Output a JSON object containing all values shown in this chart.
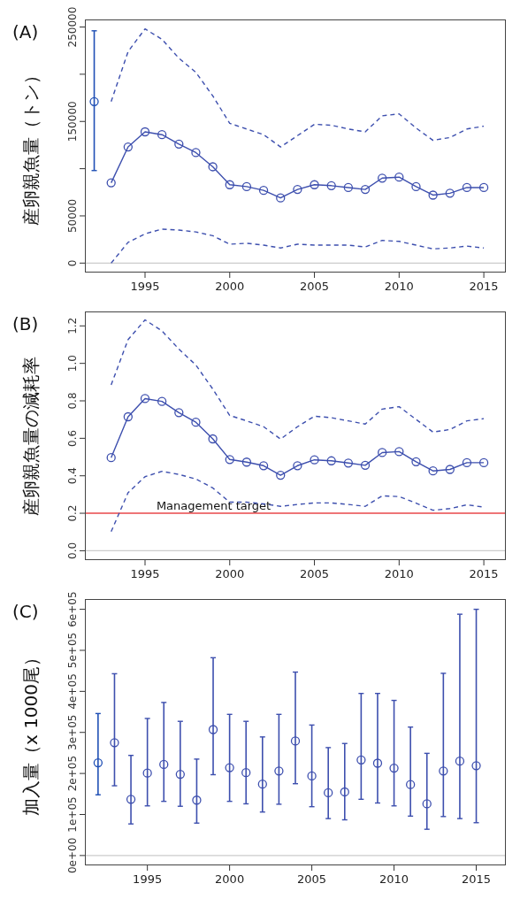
{
  "chart_data": [
    {
      "type": "line",
      "title": "(A)",
      "ylabel": "産卵親魚量（トン）",
      "x": [
        1993,
        1994,
        1995,
        1996,
        1997,
        1998,
        1999,
        2000,
        2001,
        2002,
        2003,
        2004,
        2005,
        2006,
        2007,
        2008,
        2009,
        2010,
        2011,
        2012,
        2013,
        2014,
        2015
      ],
      "xlim": [
        1991.45,
        2016.3
      ],
      "xticks": [
        1995,
        2000,
        2005,
        2010,
        2015
      ],
      "ylim": [
        -10000,
        258000
      ],
      "yticks": [
        0,
        50000,
        {
          "value": 100000,
          "label": null
        },
        150000,
        {
          "value": 200000,
          "label": null
        },
        250000
      ],
      "marker": "circle",
      "line_style": "solid",
      "series": [
        {
          "color": "#3d4fae",
          "values": [
            85000,
            123000,
            139000,
            136000,
            126000,
            117000,
            102000,
            83000,
            81000,
            77000,
            69000,
            78000,
            83000,
            82000,
            80000,
            78000,
            90000,
            91000,
            81000,
            72000,
            74000,
            80000,
            80000
          ]
        },
        {
          "color": "#3d4fae",
          "line_style": "dashed",
          "marker": "none",
          "values": [
            171000,
            224000,
            248000,
            237000,
            217000,
            202000,
            177000,
            148000,
            142000,
            136000,
            123000,
            135000,
            147000,
            146000,
            142000,
            139000,
            156000,
            158000,
            143000,
            130000,
            133000,
            142000,
            145000
          ]
        },
        {
          "color": "#3d4fae",
          "line_style": "dashed",
          "marker": "none",
          "values": [
            0,
            22000,
            31000,
            36000,
            35000,
            33000,
            29000,
            20000,
            21000,
            19000,
            16000,
            20000,
            19000,
            19000,
            19000,
            17000,
            24000,
            23000,
            19000,
            15000,
            16000,
            18000,
            16000
          ]
        },
        {
          "type": "scatter",
          "color": "#1f4fb5",
          "x": [
            1992
          ],
          "values": [
            171000
          ],
          "errors": [
            [
              98000,
              246000
            ]
          ]
        }
      ],
      "ref_lines": [
        {
          "axis": "y",
          "value": 0,
          "color": "#cccccc"
        }
      ]
    },
    {
      "type": "line",
      "title": "(B)",
      "ylabel": "産卵親魚量の減耗率",
      "x": [
        1993,
        1994,
        1995,
        1996,
        1997,
        1998,
        1999,
        2000,
        2001,
        2002,
        2003,
        2004,
        2005,
        2006,
        2007,
        2008,
        2009,
        2010,
        2011,
        2012,
        2013,
        2014,
        2015
      ],
      "xlim": [
        1991.45,
        2016.3
      ],
      "xticks": [
        1995,
        2000,
        2005,
        2010,
        2015
      ],
      "ylim": [
        -0.05,
        1.277
      ],
      "yticks": [
        {
          "value": 0,
          "label": "0.0"
        },
        0.2,
        0.4,
        0.6,
        0.8,
        {
          "value": 1,
          "label": "1.0"
        },
        1.2
      ],
      "marker": "circle",
      "line_style": "solid",
      "series": [
        {
          "color": "#3d4fae",
          "values": [
            0.497,
            0.715,
            0.812,
            0.797,
            0.737,
            0.686,
            0.597,
            0.487,
            0.473,
            0.454,
            0.403,
            0.454,
            0.485,
            0.48,
            0.468,
            0.456,
            0.524,
            0.529,
            0.475,
            0.426,
            0.434,
            0.47,
            0.47
          ]
        },
        {
          "color": "#3d4fae",
          "line_style": "dashed",
          "marker": "none",
          "values": [
            0.885,
            1.127,
            1.232,
            1.173,
            1.076,
            0.991,
            0.863,
            0.722,
            0.693,
            0.662,
            0.596,
            0.662,
            0.718,
            0.71,
            0.693,
            0.676,
            0.756,
            0.769,
            0.701,
            0.633,
            0.647,
            0.693,
            0.705
          ]
        },
        {
          "color": "#3d4fae",
          "line_style": "dashed",
          "marker": "none",
          "values": [
            0.102,
            0.31,
            0.395,
            0.424,
            0.407,
            0.383,
            0.335,
            0.259,
            0.259,
            0.25,
            0.237,
            0.247,
            0.255,
            0.255,
            0.247,
            0.237,
            0.293,
            0.289,
            0.254,
            0.216,
            0.225,
            0.245,
            0.233
          ]
        }
      ],
      "ref_lines": [
        {
          "axis": "y",
          "value": 0,
          "color": "#cccccc"
        },
        {
          "axis": "y",
          "value": 0.2,
          "label": "Management target",
          "color": "#e8474a"
        }
      ]
    },
    {
      "type": "scatter",
      "title": "(C)",
      "ylabel": "加入量（x 1000尾）",
      "xlim": [
        1991.2,
        2016.8
      ],
      "xticks": [
        1995,
        2000,
        2005,
        2010,
        2015
      ],
      "ylim": [
        -24000,
        625000
      ],
      "yticks": [
        {
          "value": 0,
          "label": "0e+00"
        },
        {
          "value": 100000,
          "label": "1e+05"
        },
        {
          "value": 200000,
          "label": "2e+05"
        },
        {
          "value": 300000,
          "label": "3e+05"
        },
        {
          "value": 400000,
          "label": "4e+05"
        },
        {
          "value": 500000,
          "label": "5e+05"
        },
        {
          "value": 600000,
          "label": "6e+05"
        }
      ],
      "marker": "circle",
      "series": [
        {
          "color": "#1f4fb5",
          "x": [
            1992
          ],
          "values": [
            226000
          ],
          "errors": [
            [
              148000,
              346000
            ]
          ]
        },
        {
          "color": "#3d4fae",
          "x": [
            1993,
            1994,
            1995,
            1996,
            1997,
            1998,
            1999,
            2000,
            2001,
            2002,
            2003,
            2004,
            2005,
            2006,
            2007,
            2008,
            2009,
            2010,
            2011,
            2012,
            2013,
            2014,
            2015
          ],
          "values": [
            275000,
            137000,
            201000,
            222000,
            198000,
            135000,
            307000,
            214000,
            202000,
            174000,
            206000,
            279000,
            194000,
            153000,
            155000,
            233000,
            225000,
            213000,
            173000,
            126000,
            206000,
            230000,
            219000
          ],
          "errors": [
            [
              170000,
              443000
            ],
            [
              77000,
              244000
            ],
            [
              121000,
              334000
            ],
            [
              132000,
              373000
            ],
            [
              120000,
              327000
            ],
            [
              79000,
              235000
            ],
            [
              197000,
              482000
            ],
            [
              132000,
              344000
            ],
            [
              126000,
              327000
            ],
            [
              106000,
              289000
            ],
            [
              125000,
              344000
            ],
            [
              175000,
              447000
            ],
            [
              119000,
              318000
            ],
            [
              90000,
              263000
            ],
            [
              87000,
              273000
            ],
            [
              137000,
              395000
            ],
            [
              128000,
              395000
            ],
            [
              121000,
              378000
            ],
            [
              96000,
              313000
            ],
            [
              64000,
              249000
            ],
            [
              95000,
              444000
            ],
            [
              90000,
              588000
            ],
            [
              80000,
              600000
            ]
          ]
        }
      ],
      "ref_lines": [
        {
          "axis": "y",
          "value": 0,
          "color": "#cccccc"
        }
      ]
    }
  ]
}
